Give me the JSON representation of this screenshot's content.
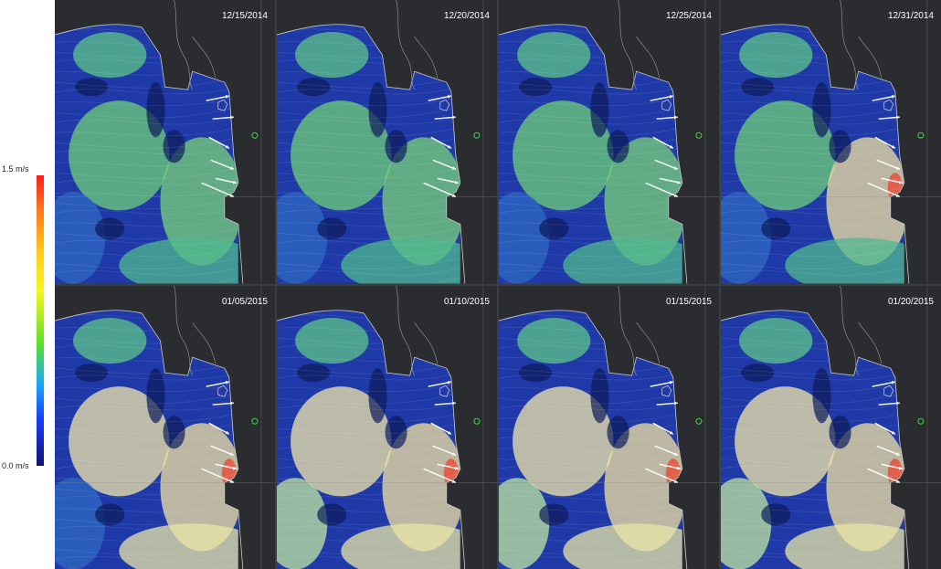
{
  "colorbar": {
    "max_label": "1.5 m/s",
    "min_label": "0.0 m/s",
    "colors": [
      "#ff1a1a",
      "#ff7a1a",
      "#ffd21a",
      "#f7f51e",
      "#58e02a",
      "#1aa6ff",
      "#1a3cff",
      "#12126e"
    ]
  },
  "panels": [
    {
      "date": "12/15/2014"
    },
    {
      "date": "12/20/2014"
    },
    {
      "date": "12/25/2014"
    },
    {
      "date": "12/31/2014"
    },
    {
      "date": "01/05/2015"
    },
    {
      "date": "01/10/2015"
    },
    {
      "date": "01/15/2015"
    },
    {
      "date": "01/20/2015"
    }
  ]
}
